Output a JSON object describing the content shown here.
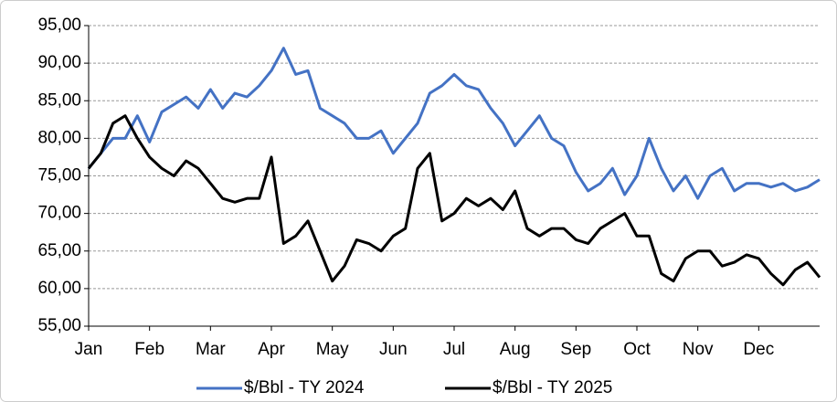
{
  "chart_data": {
    "type": "line",
    "categories": [
      "Jan",
      null,
      null,
      null,
      null,
      "Feb",
      null,
      null,
      null,
      null,
      "Mar",
      null,
      null,
      null,
      null,
      "Apr",
      null,
      null,
      null,
      null,
      "May",
      null,
      null,
      null,
      null,
      "Jun",
      null,
      null,
      null,
      null,
      "Jul",
      null,
      null,
      null,
      null,
      "Aug",
      null,
      null,
      null,
      null,
      "Sep",
      null,
      null,
      null,
      null,
      "Oct",
      null,
      null,
      null,
      null,
      "Nov",
      null,
      null,
      null,
      null,
      "Dec",
      null,
      null,
      null,
      null,
      null
    ],
    "series": [
      {
        "name": "$/Bbl - TY 2024",
        "color": "#4472c4",
        "values": [
          76,
          78,
          80,
          80,
          83,
          79.5,
          83.5,
          84.5,
          85.5,
          84,
          86.5,
          84,
          86,
          85.5,
          87,
          89,
          92,
          88.5,
          89,
          84,
          83,
          82,
          80,
          80,
          81,
          78,
          80,
          82,
          86,
          87,
          88.5,
          87,
          86.5,
          84,
          82,
          79,
          81,
          83,
          80,
          79,
          75.5,
          73,
          74,
          76,
          72.5,
          75,
          80,
          76,
          73,
          75,
          72,
          75,
          76,
          73,
          74,
          74,
          73.5,
          74,
          73,
          73.5,
          74.5
        ]
      },
      {
        "name": "$/Bbl - TY 2025",
        "color": "#000000",
        "values": [
          76,
          78,
          82,
          83,
          80,
          77.5,
          76,
          75,
          77,
          76,
          74,
          72,
          71.5,
          72,
          72,
          77.5,
          66,
          67,
          69,
          65,
          61,
          63,
          66.5,
          66,
          65,
          67,
          68,
          76,
          78,
          69,
          70,
          72,
          71,
          72,
          70.5,
          73,
          68,
          67,
          68,
          68,
          66.5,
          66,
          68,
          69,
          70,
          67,
          67,
          62,
          61,
          64,
          65,
          65,
          63,
          63.5,
          64.5,
          64,
          62,
          60.5,
          62.5,
          63.5,
          61.5
        ]
      }
    ],
    "ylim": [
      55,
      95
    ],
    "yticks": [
      {
        "value": 55,
        "label": "55,00"
      },
      {
        "value": 60,
        "label": "60,00"
      },
      {
        "value": 65,
        "label": "65,00"
      },
      {
        "value": 70,
        "label": "70,00"
      },
      {
        "value": 75,
        "label": "75,00"
      },
      {
        "value": 80,
        "label": "80,00"
      },
      {
        "value": 85,
        "label": "85,00"
      },
      {
        "value": 90,
        "label": "90,00"
      },
      {
        "value": 95,
        "label": "95,00"
      }
    ],
    "grid": true,
    "legend": "bottom"
  }
}
